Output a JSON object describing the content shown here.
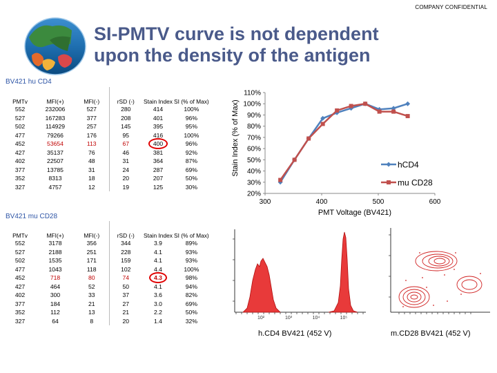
{
  "header": {
    "confidential": "COMPANY CONFIDENTIAL",
    "title_line1": "SI-PMTV curve is not dependent",
    "title_line2": "upon the density of the antigen"
  },
  "table_cd4": {
    "label": "BV421 hu CD4",
    "headers": [
      "PMTv",
      "MFI(+)",
      "MFI(-)",
      "rSD (-)",
      "Stain Index",
      "SI (% of Max)"
    ],
    "rows": [
      [
        "552",
        "232006",
        "527",
        "280",
        "414",
        "100%"
      ],
      [
        "527",
        "167283",
        "377",
        "208",
        "401",
        "96%"
      ],
      [
        "502",
        "114929",
        "257",
        "145",
        "395",
        "95%"
      ],
      [
        "477",
        "79266",
        "176",
        "95",
        "416",
        "100%"
      ],
      [
        "452",
        "53654",
        "113",
        "67",
        "400",
        "96%"
      ],
      [
        "427",
        "35137",
        "76",
        "46",
        "381",
        "92%"
      ],
      [
        "402",
        "22507",
        "48",
        "31",
        "364",
        "87%"
      ],
      [
        "377",
        "13785",
        "31",
        "24",
        "287",
        "69%"
      ],
      [
        "352",
        "8313",
        "18",
        "20",
        "207",
        "50%"
      ],
      [
        "327",
        "4757",
        "12",
        "19",
        "125",
        "30%"
      ]
    ]
  },
  "table_cd28": {
    "label": "BV421 mu CD28",
    "headers": [
      "PMTv",
      "MFI(+)",
      "MFI(-)",
      "rSD (-)",
      "Stain Index",
      "SI (% of Max)"
    ],
    "rows": [
      [
        "552",
        "3178",
        "356",
        "344",
        "3.9",
        "89%"
      ],
      [
        "527",
        "2188",
        "251",
        "228",
        "4.1",
        "93%"
      ],
      [
        "502",
        "1535",
        "171",
        "159",
        "4.1",
        "93%"
      ],
      [
        "477",
        "1043",
        "118",
        "102",
        "4.4",
        "100%"
      ],
      [
        "452",
        "718",
        "80",
        "74",
        "4.3",
        "98%"
      ],
      [
        "427",
        "464",
        "52",
        "50",
        "4.1",
        "94%"
      ],
      [
        "402",
        "300",
        "33",
        "37",
        "3.6",
        "82%"
      ],
      [
        "377",
        "184",
        "21",
        "27",
        "3.0",
        "69%"
      ],
      [
        "352",
        "112",
        "13",
        "21",
        "2.2",
        "50%"
      ],
      [
        "327",
        "64",
        "8",
        "20",
        "1.4",
        "32%"
      ]
    ]
  },
  "chart_data": {
    "type": "line",
    "xlabel": "PMT Voltage (BV421)",
    "ylabel": "Stain Index (% of Max)",
    "xlim": [
      300,
      600
    ],
    "ylim": [
      20,
      110
    ],
    "x_ticks": [
      "300",
      "400",
      "500",
      "600"
    ],
    "y_ticks": [
      "20%",
      "30%",
      "40%",
      "50%",
      "60%",
      "70%",
      "80%",
      "90%",
      "100%",
      "110%"
    ],
    "series": [
      {
        "name": "hCD4",
        "color": "#4f81bd",
        "x": [
          327,
          352,
          377,
          402,
          427,
          452,
          477,
          502,
          527,
          552
        ],
        "y": [
          30,
          50,
          69,
          87,
          92,
          96,
          100,
          95,
          96,
          100
        ]
      },
      {
        "name": "mu CD28",
        "color": "#c0504d",
        "x": [
          327,
          352,
          377,
          402,
          427,
          452,
          477,
          502,
          527,
          552
        ],
        "y": [
          32,
          50,
          69,
          82,
          94,
          98,
          100,
          93,
          93,
          89
        ]
      }
    ]
  },
  "histograms": {
    "left_caption": "h.CD4 BV421 (452 V)",
    "right_caption": "m.CD28 BV421 (452 V)",
    "x_ticks": [
      "10²",
      "10³",
      "10⁴",
      "10⁵"
    ]
  },
  "colors": {
    "title": "#4a5a8a",
    "table_label": "#2e55a6",
    "highlight_circle": "#e00000",
    "histogram_fill": "#e83a3a",
    "contour": "#d02020"
  }
}
